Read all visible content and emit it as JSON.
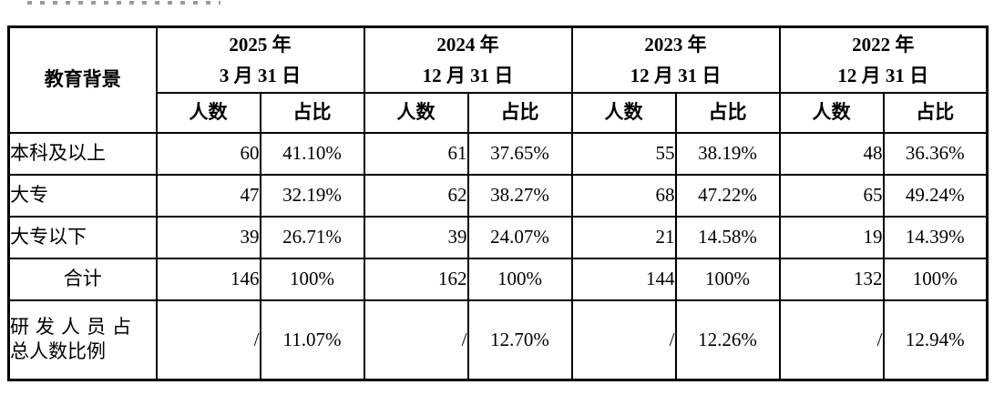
{
  "colors": {
    "border": "#000000",
    "text": "#000000",
    "background": "#ffffff"
  },
  "table": {
    "corner_header": "教育背景",
    "col_groups": [
      {
        "line1": "2025 年",
        "line2": "3 月 31 日"
      },
      {
        "line1": "2024 年",
        "line2": "12 月 31 日"
      },
      {
        "line1": "2023 年",
        "line2": "12 月 31 日"
      },
      {
        "line1": "2022 年",
        "line2": "12 月 31 日"
      }
    ],
    "sub_headers": {
      "count": "人数",
      "ratio": "占比"
    },
    "rows": [
      {
        "label": "本科及以上",
        "cells": [
          "60",
          "41.10%",
          "61",
          "37.65%",
          "55",
          "38.19%",
          "48",
          "36.36%"
        ]
      },
      {
        "label": "大专",
        "cells": [
          "47",
          "32.19%",
          "62",
          "38.27%",
          "68",
          "47.22%",
          "65",
          "49.24%"
        ]
      },
      {
        "label": "大专以下",
        "cells": [
          "39",
          "26.71%",
          "39",
          "24.07%",
          "21",
          "14.58%",
          "19",
          "14.39%"
        ]
      },
      {
        "label": "合计",
        "cells": [
          "146",
          "100%",
          "162",
          "100%",
          "144",
          "100%",
          "132",
          "100%"
        ]
      },
      {
        "label_line1": "研发人员占",
        "label_line2": "总人数比例",
        "cells": [
          "/",
          "11.07%",
          "/",
          "12.70%",
          "/",
          "12.26%",
          "/",
          "12.94%"
        ]
      }
    ]
  }
}
